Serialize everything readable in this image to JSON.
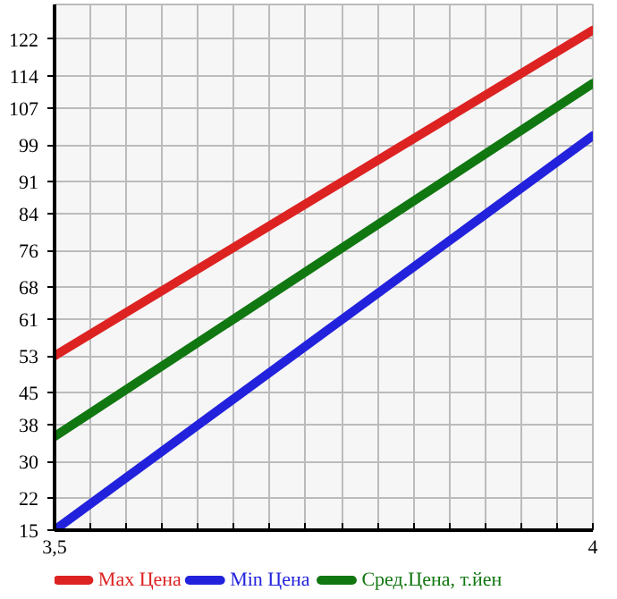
{
  "chart_data": {
    "type": "line",
    "x": [
      3.5,
      4
    ],
    "series": [
      {
        "name": "Max Цена",
        "color": "#dd2222",
        "values": [
          53,
          124
        ]
      },
      {
        "name": "Min Цена",
        "color": "#2222dd",
        "values": [
          15,
          101
        ]
      },
      {
        "name": "Сред.Цена, т.йен",
        "color": "#117711",
        "values": [
          35.4,
          112.4
        ]
      }
    ],
    "xlim": [
      3.5,
      4
    ],
    "xticks": [
      {
        "value": 3.5,
        "label": "3,5"
      },
      {
        "value": 3.5333,
        "label": null
      },
      {
        "value": 3.5667,
        "label": null
      },
      {
        "value": 3.6,
        "label": null
      },
      {
        "value": 3.6333,
        "label": null
      },
      {
        "value": 3.6667,
        "label": null
      },
      {
        "value": 3.7,
        "label": null
      },
      {
        "value": 3.7333,
        "label": null
      },
      {
        "value": 3.7667,
        "label": null
      },
      {
        "value": 3.8,
        "label": null
      },
      {
        "value": 3.8333,
        "label": null
      },
      {
        "value": 3.8667,
        "label": null
      },
      {
        "value": 3.9,
        "label": null
      },
      {
        "value": 3.9333,
        "label": null
      },
      {
        "value": 3.9667,
        "label": null
      },
      4
    ],
    "ylim": [
      15,
      129.6
    ],
    "yticks": [
      15,
      22,
      30,
      38,
      45,
      53,
      61,
      68,
      76,
      84,
      91,
      99,
      107,
      114,
      122
    ],
    "grid": true,
    "legend": "bottom",
    "marker": "none",
    "line_style": "solid"
  }
}
